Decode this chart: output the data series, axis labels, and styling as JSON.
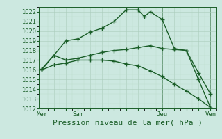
{
  "bg_color": "#cce8e0",
  "grid_color_major": "#aaccbb",
  "grid_color_minor": "#bbddcc",
  "line_color": "#1a5e28",
  "title": "Pression niveau de la mer( hPa )",
  "title_fontsize": 8,
  "ylim": [
    1012,
    1022.5
  ],
  "yticks": [
    1012,
    1013,
    1014,
    1015,
    1016,
    1017,
    1018,
    1019,
    1020,
    1021,
    1022
  ],
  "ytick_fontsize": 6,
  "day_labels": [
    "Mer",
    "Sam",
    "Jeu",
    "Ven"
  ],
  "day_positions": [
    0,
    6,
    20,
    28
  ],
  "xlim": [
    -0.5,
    29
  ],
  "line1_x": [
    0,
    2,
    4,
    6,
    8,
    10,
    12,
    14,
    16,
    17,
    18,
    20,
    22,
    24,
    26,
    28
  ],
  "line1_y": [
    1016.0,
    1017.5,
    1019.0,
    1019.2,
    1019.9,
    1020.3,
    1021.0,
    1022.2,
    1022.2,
    1021.5,
    1022.0,
    1021.2,
    1018.2,
    1018.0,
    1015.0,
    1012.1
  ],
  "line2_x": [
    0,
    2,
    4,
    6,
    8,
    10,
    12,
    14,
    16,
    18,
    20,
    22,
    24,
    26,
    28
  ],
  "line2_y": [
    1016.1,
    1017.5,
    1017.0,
    1017.2,
    1017.5,
    1017.8,
    1018.0,
    1018.1,
    1018.3,
    1018.5,
    1018.2,
    1018.1,
    1018.0,
    1015.7,
    1013.5
  ],
  "line3_x": [
    0,
    2,
    4,
    6,
    8,
    10,
    12,
    14,
    16,
    18,
    20,
    22,
    24,
    26,
    28
  ],
  "line3_y": [
    1016.0,
    1016.5,
    1016.7,
    1017.0,
    1017.0,
    1017.0,
    1016.9,
    1016.6,
    1016.4,
    1015.9,
    1015.3,
    1014.5,
    1013.8,
    1013.0,
    1012.1
  ]
}
